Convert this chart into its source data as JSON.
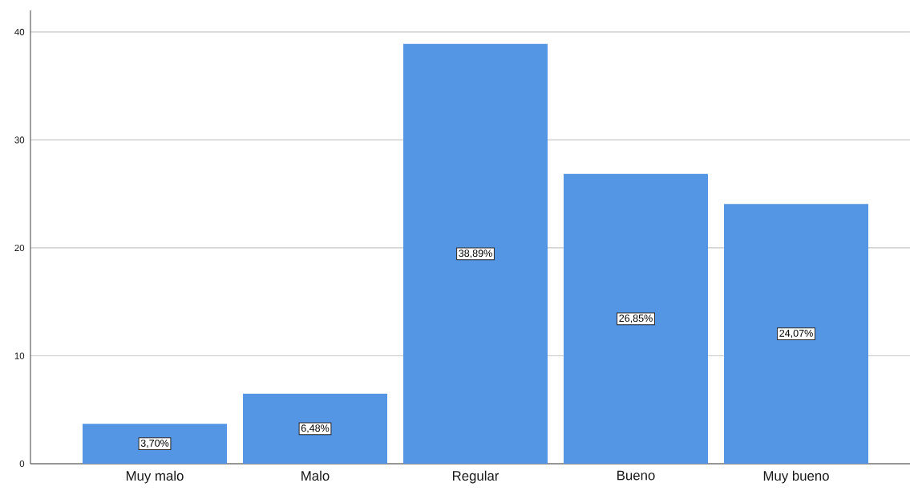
{
  "chart_data": {
    "type": "bar",
    "categories": [
      "Muy malo",
      "Malo",
      "Regular",
      "Bueno",
      "Muy bueno"
    ],
    "values": [
      3.7,
      6.48,
      38.89,
      26.85,
      24.07
    ],
    "value_labels": [
      "3,70%",
      "6,48%",
      "38,89%",
      "26,85%",
      "24,07%"
    ],
    "color": "#5596e4",
    "ylim": [
      0,
      42
    ],
    "yticks": [
      0,
      10,
      20,
      30,
      40
    ],
    "grid": "y"
  }
}
